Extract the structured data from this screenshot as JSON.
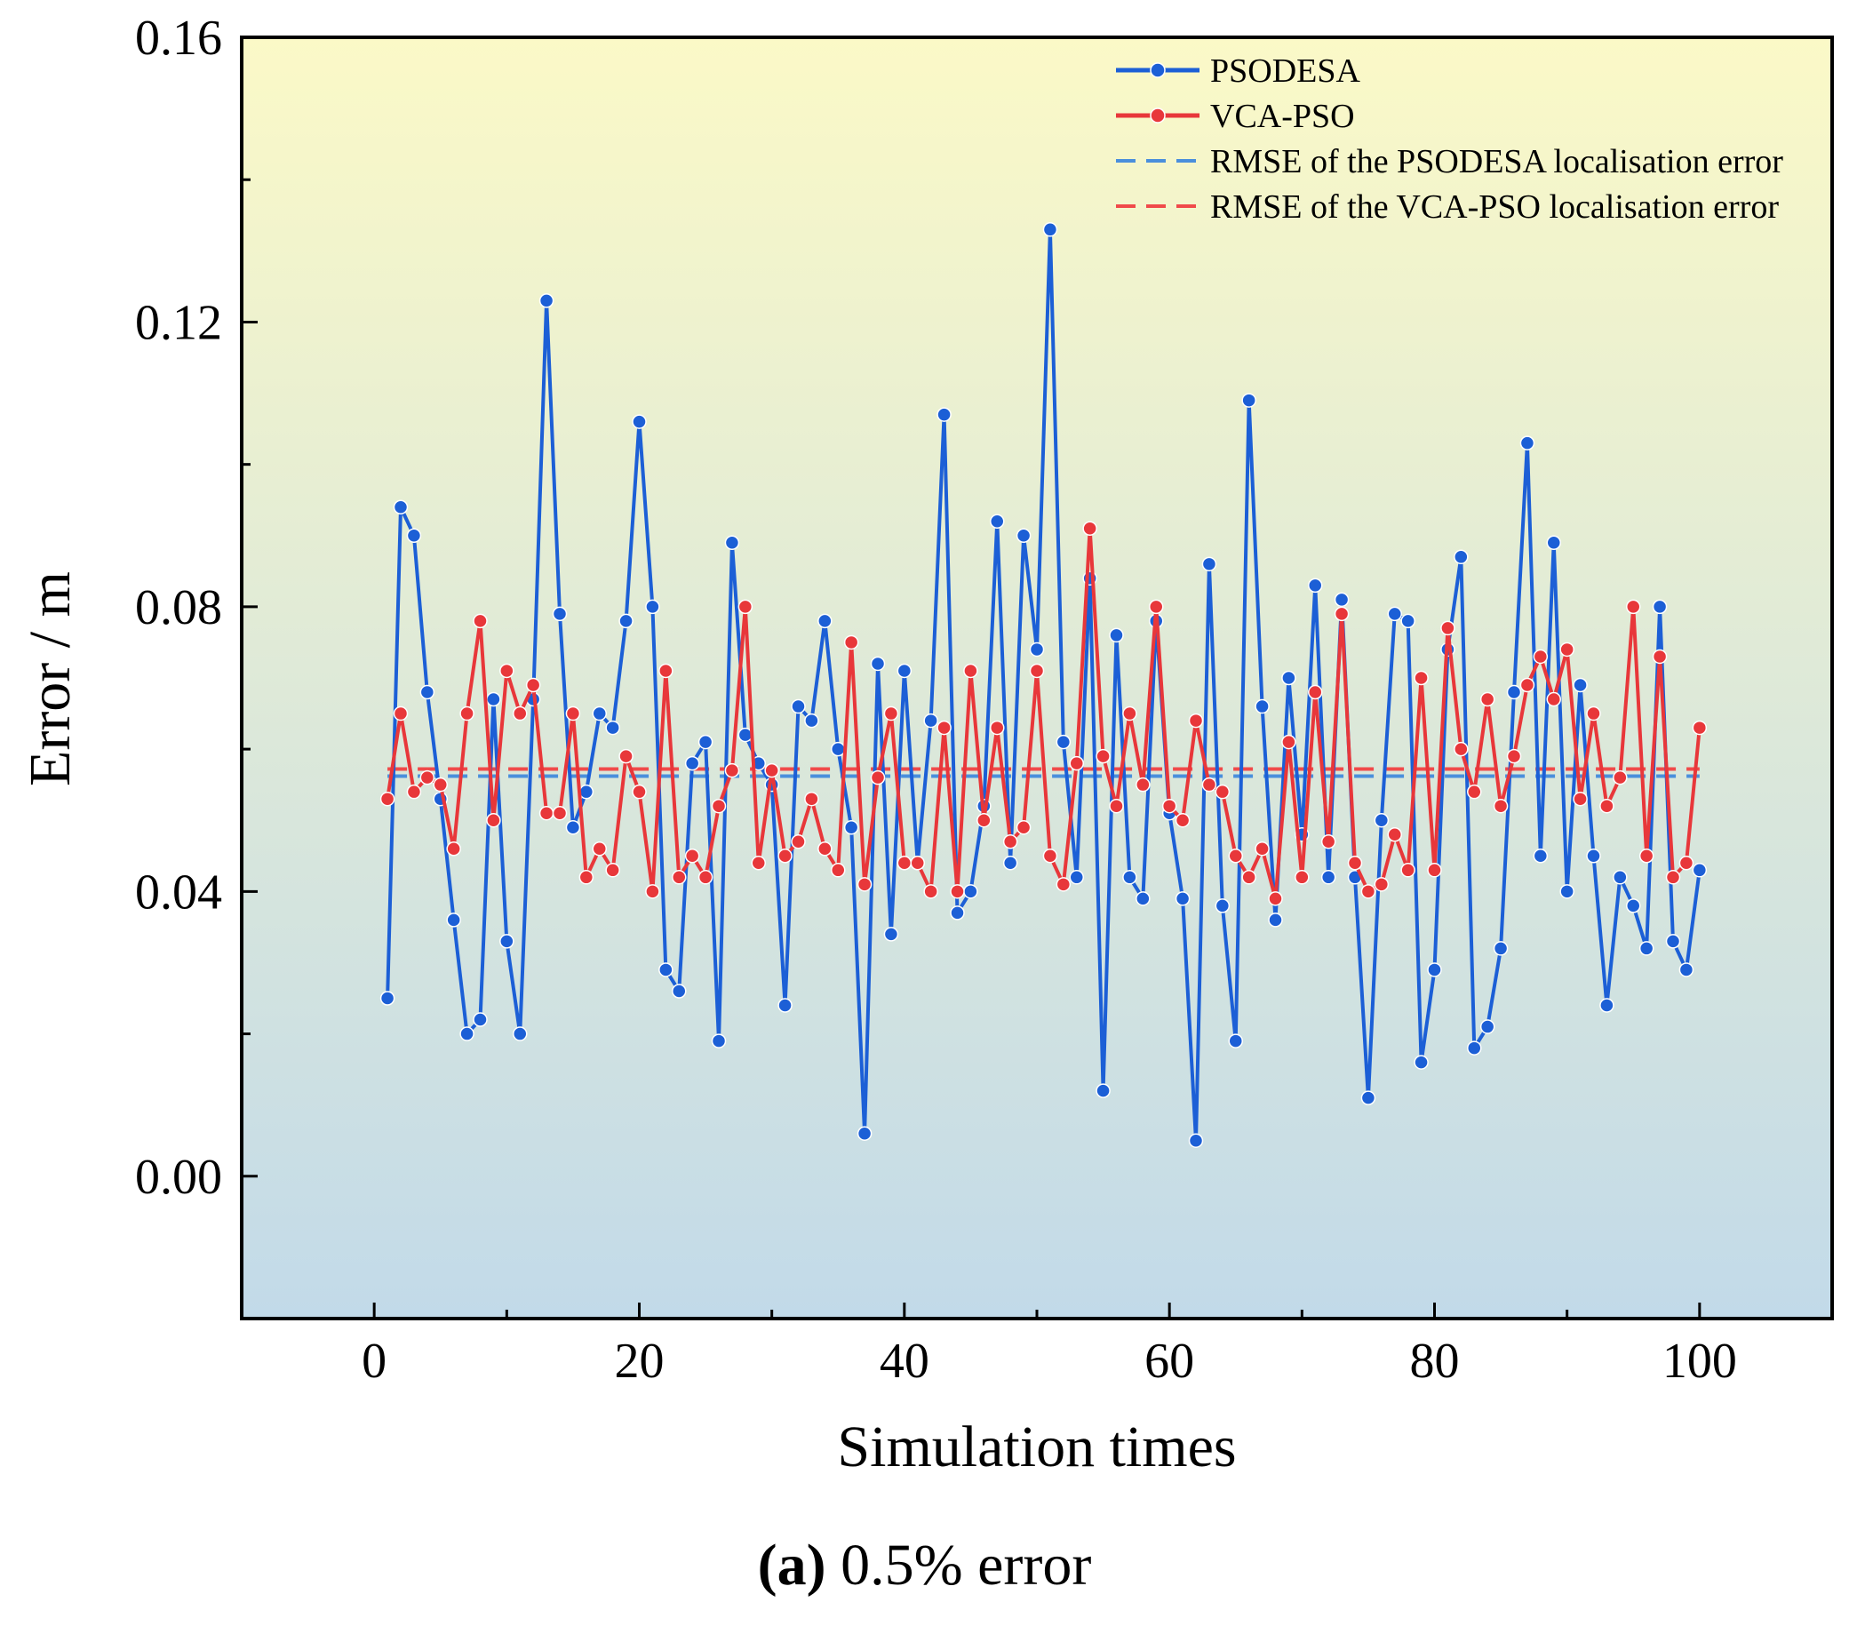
{
  "chart_data": {
    "type": "line",
    "xlabel": "Simulation times",
    "ylabel": "Error / m",
    "xlim": [
      -10,
      110
    ],
    "ylim": [
      -0.02,
      0.16
    ],
    "xticks": [
      0,
      20,
      40,
      60,
      80,
      100
    ],
    "yticks": [
      0.0,
      0.04,
      0.08,
      0.12,
      0.16
    ],
    "xtick_labels": [
      "0",
      "20",
      "40",
      "60",
      "80",
      "100"
    ],
    "ytick_labels": [
      "0.00",
      "0.04",
      "0.08",
      "0.12",
      "0.16"
    ],
    "background_gradient": [
      "#fbf9c7",
      "#c2dae9"
    ],
    "legend_position": "top-right",
    "series": [
      {
        "name": "PSODESA",
        "color": "#1c5fd6",
        "values": [
          0.025,
          0.094,
          0.09,
          0.068,
          0.053,
          0.036,
          0.02,
          0.022,
          0.067,
          0.033,
          0.02,
          0.067,
          0.123,
          0.079,
          0.049,
          0.054,
          0.065,
          0.063,
          0.078,
          0.106,
          0.08,
          0.029,
          0.026,
          0.058,
          0.061,
          0.019,
          0.089,
          0.062,
          0.058,
          0.055,
          0.024,
          0.066,
          0.064,
          0.078,
          0.06,
          0.049,
          0.006,
          0.072,
          0.034,
          0.071,
          0.044,
          0.064,
          0.107,
          0.037,
          0.04,
          0.052,
          0.092,
          0.044,
          0.09,
          0.074,
          0.133,
          0.061,
          0.042,
          0.084,
          0.012,
          0.076,
          0.042,
          0.039,
          0.078,
          0.051,
          0.039,
          0.005,
          0.086,
          0.038,
          0.019,
          0.109,
          0.066,
          0.036,
          0.07,
          0.048,
          0.083,
          0.042,
          0.081,
          0.042,
          0.011,
          0.05,
          0.079,
          0.078,
          0.016,
          0.029,
          0.074,
          0.087,
          0.018,
          0.021,
          0.032,
          0.068,
          0.103,
          0.045,
          0.089,
          0.04,
          0.069,
          0.045,
          0.024,
          0.042,
          0.038,
          0.032,
          0.08,
          0.033,
          0.029,
          0.043
        ]
      },
      {
        "name": "VCA-PSO",
        "color": "#e8373a",
        "values": [
          0.053,
          0.065,
          0.054,
          0.056,
          0.055,
          0.046,
          0.065,
          0.078,
          0.05,
          0.071,
          0.065,
          0.069,
          0.051,
          0.051,
          0.065,
          0.042,
          0.046,
          0.043,
          0.059,
          0.054,
          0.04,
          0.071,
          0.042,
          0.045,
          0.042,
          0.052,
          0.057,
          0.08,
          0.044,
          0.057,
          0.045,
          0.047,
          0.053,
          0.046,
          0.043,
          0.075,
          0.041,
          0.056,
          0.065,
          0.044,
          0.044,
          0.04,
          0.063,
          0.04,
          0.071,
          0.05,
          0.063,
          0.047,
          0.049,
          0.071,
          0.045,
          0.041,
          0.058,
          0.091,
          0.059,
          0.052,
          0.065,
          0.055,
          0.08,
          0.052,
          0.05,
          0.064,
          0.055,
          0.054,
          0.045,
          0.042,
          0.046,
          0.039,
          0.061,
          0.042,
          0.068,
          0.047,
          0.079,
          0.044,
          0.04,
          0.041,
          0.048,
          0.043,
          0.07,
          0.043,
          0.077,
          0.06,
          0.054,
          0.067,
          0.052,
          0.059,
          0.069,
          0.073,
          0.067,
          0.074,
          0.053,
          0.065,
          0.052,
          0.056,
          0.08,
          0.045,
          0.073,
          0.042,
          0.044,
          0.063
        ]
      },
      {
        "name": "RMSE of the PSODESA localisation error",
        "color": "#4a8fdc",
        "style": "dashed",
        "constant": 0.0562
      },
      {
        "name": "RMSE of the VCA-PSO localisation error",
        "color": "#f04a4a",
        "style": "dashed",
        "constant": 0.0572
      }
    ]
  },
  "caption": {
    "label": "(a)",
    "text": " 0.5% error"
  }
}
